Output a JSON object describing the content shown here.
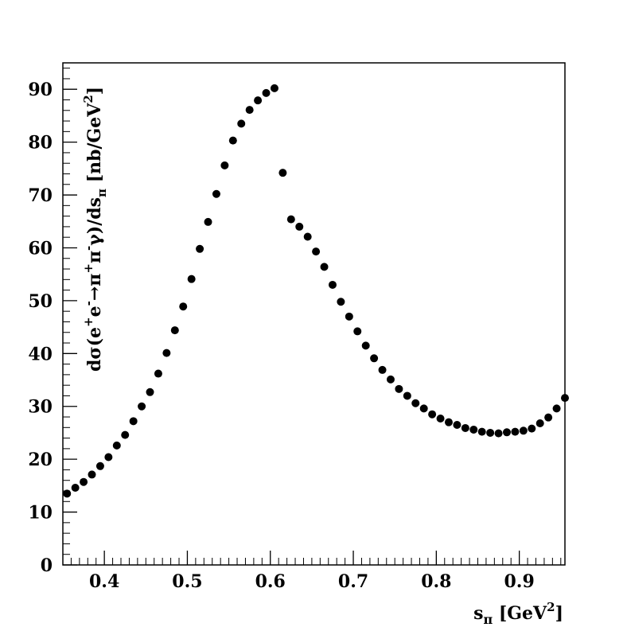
{
  "chart_data": {
    "type": "scatter",
    "title": "",
    "xlabel": {
      "main": "s",
      "sub": "π",
      "unit_pre": " [GeV",
      "unit_sup": "2",
      "unit_post": "]"
    },
    "ylabel": {
      "parts": [
        {
          "t": "dσ(e"
        },
        {
          "t": "+",
          "shift": "sup"
        },
        {
          "t": "e"
        },
        {
          "t": "-",
          "shift": "sup"
        },
        {
          "t": "→π"
        },
        {
          "t": "+",
          "shift": "sup"
        },
        {
          "t": "π"
        },
        {
          "t": "-",
          "shift": "sup"
        },
        {
          "t": "γ)/ds"
        },
        {
          "t": "π",
          "shift": "sub"
        },
        {
          "t": " [nb/GeV"
        },
        {
          "t": "2",
          "shift": "sup"
        },
        {
          "t": "]"
        }
      ]
    },
    "xlim": [
      0.35,
      0.955
    ],
    "ylim": [
      0,
      95
    ],
    "x_ticks": [
      0.4,
      0.5,
      0.6,
      0.7,
      0.8,
      0.9
    ],
    "x_tick_labels": [
      "0.4",
      "0.5",
      "0.6",
      "0.7",
      "0.8",
      "0.9"
    ],
    "y_ticks": [
      0,
      10,
      20,
      30,
      40,
      50,
      60,
      70,
      80,
      90
    ],
    "y_tick_labels": [
      "0",
      "10",
      "20",
      "30",
      "40",
      "50",
      "60",
      "70",
      "80",
      "90"
    ],
    "grid": false,
    "legend": "none",
    "marker_color": "#000000",
    "series": [
      {
        "x": [
          0.355,
          0.365,
          0.375,
          0.385,
          0.395,
          0.405,
          0.415,
          0.425,
          0.435,
          0.445,
          0.455,
          0.465,
          0.475,
          0.485,
          0.495,
          0.505,
          0.515,
          0.525,
          0.535,
          0.545,
          0.555,
          0.565,
          0.575,
          0.585,
          0.595,
          0.605,
          0.615,
          0.625,
          0.635,
          0.645,
          0.655,
          0.665,
          0.675,
          0.685,
          0.695,
          0.705,
          0.715,
          0.725,
          0.735,
          0.745,
          0.755,
          0.765,
          0.775,
          0.785,
          0.795,
          0.805,
          0.815,
          0.825,
          0.835,
          0.845,
          0.855,
          0.865,
          0.875,
          0.885,
          0.895,
          0.905,
          0.915,
          0.925,
          0.935,
          0.945,
          0.955
        ],
        "y": [
          13.5,
          14.6,
          15.7,
          17.1,
          18.7,
          20.4,
          22.6,
          24.6,
          27.2,
          30.0,
          32.7,
          36.2,
          40.1,
          44.4,
          48.9,
          54.1,
          59.8,
          64.9,
          70.2,
          75.6,
          80.3,
          83.5,
          86.1,
          87.9,
          89.3,
          90.2,
          74.2,
          65.4,
          64.0,
          62.1,
          59.3,
          56.4,
          53.0,
          49.8,
          47.0,
          44.2,
          41.5,
          39.1,
          36.9,
          35.1,
          33.3,
          32.0,
          30.6,
          29.6,
          28.5,
          27.7,
          27.0,
          26.5,
          25.9,
          25.6,
          25.2,
          25.0,
          24.9,
          25.1,
          25.2,
          25.4,
          25.8,
          26.8,
          27.9,
          29.6,
          31.6
        ]
      }
    ]
  }
}
